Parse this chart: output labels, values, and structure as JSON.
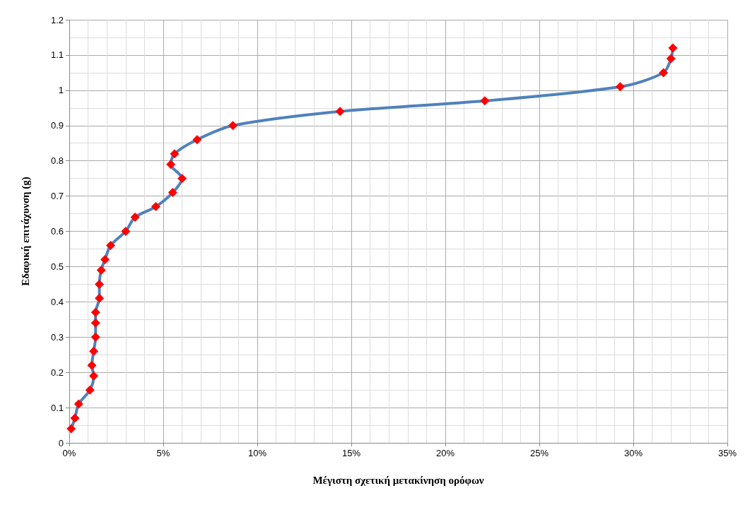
{
  "chart_data": {
    "type": "line",
    "xlabel": "Μέγιστη σχετική μετακίνηση ορόφων",
    "ylabel": "Εδαφική επιτάχυνση (g)",
    "series": [
      {
        "color": "#4f81bd",
        "x": [
          0.1,
          0.3,
          0.5,
          1.1,
          1.3,
          1.2,
          1.3,
          1.4,
          1.4,
          1.4,
          1.6,
          1.6,
          1.7,
          1.9,
          2.2,
          3.0,
          3.5,
          4.6,
          5.5,
          6.0,
          5.4,
          5.6,
          6.8,
          8.7,
          14.4,
          22.1,
          29.3,
          31.6,
          32.0,
          32.1
        ],
        "values": [
          0.04,
          0.07,
          0.11,
          0.15,
          0.19,
          0.22,
          0.26,
          0.3,
          0.34,
          0.37,
          0.41,
          0.45,
          0.49,
          0.52,
          0.56,
          0.6,
          0.64,
          0.67,
          0.71,
          0.75,
          0.79,
          0.82,
          0.86,
          0.9,
          0.94,
          0.97,
          1.01,
          1.05,
          1.09,
          1.12
        ],
        "colors": [
          "#ff0000",
          "#ff0000",
          "#ff0000",
          "#ff0000",
          "#ff0000",
          "#ff0000",
          "#ff0000",
          "#ff0000",
          "#ff0000",
          "#ff0000",
          "#ff0000",
          "#ff0000",
          "#ff0000",
          "#ff0000",
          "#ff0000",
          "#ff0000",
          "#ff0000",
          "#ff0000",
          "#ff0000",
          "#ff0000",
          "#ff0000",
          "#ff0000",
          "#ff0000",
          "#ff0000",
          "#ff0000",
          "#ff0000",
          "#ff0000",
          "#ff0000",
          "#ff0000",
          "#ff0000"
        ]
      }
    ],
    "marker": "diamond",
    "line_style": "solid",
    "grid": true,
    "xlim": [
      0,
      35
    ],
    "xticks": [
      {
        "value": 0,
        "label": "0%"
      },
      {
        "value": 5,
        "label": "5%"
      },
      {
        "value": 10,
        "label": "10%"
      },
      {
        "value": 15,
        "label": "15%"
      },
      {
        "value": 20,
        "label": "20%"
      },
      {
        "value": 25,
        "label": "25%"
      },
      {
        "value": 30,
        "label": "30%"
      },
      {
        "value": 35,
        "label": "35%"
      }
    ],
    "ylim": [
      0,
      1.2
    ],
    "yticks": [
      0,
      0.1,
      0.2,
      0.3,
      0.4,
      0.5,
      0.6,
      0.7,
      0.8,
      0.9,
      1,
      1.1,
      1.2
    ]
  }
}
